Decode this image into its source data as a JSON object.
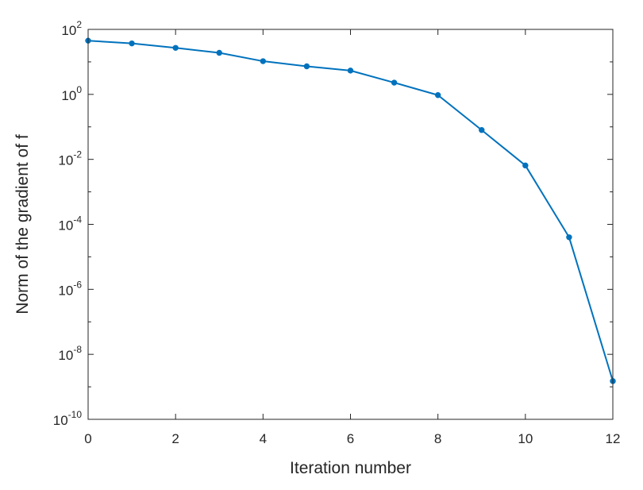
{
  "chart_data": {
    "type": "line",
    "title": "",
    "xlabel": "Iteration number",
    "ylabel": "Norm of the gradient of f",
    "yscale": "log",
    "xlim": [
      0,
      12
    ],
    "ylim": [
      1e-10,
      100
    ],
    "grid": false,
    "legend": "none",
    "x_ticks": [
      0,
      2,
      4,
      6,
      8,
      10,
      12
    ],
    "y_ticks": [
      {
        "base": "10",
        "exp": "-10"
      },
      {
        "base": "10",
        "exp": "-8"
      },
      {
        "base": "10",
        "exp": "-6"
      },
      {
        "base": "10",
        "exp": "-4"
      },
      {
        "base": "10",
        "exp": "-2"
      },
      {
        "base": "10",
        "exp": "0"
      },
      {
        "base": "10",
        "exp": "2"
      }
    ],
    "series": [
      {
        "color": "#0072BD",
        "marker": "dot",
        "x": [
          0,
          1,
          2,
          3,
          4,
          5,
          6,
          7,
          8,
          9,
          10,
          11,
          12
        ],
        "y": [
          45,
          37,
          27,
          19,
          10.5,
          7.3,
          5.4,
          2.3,
          0.95,
          0.08,
          0.0065,
          4e-05,
          1.5e-09
        ]
      }
    ]
  }
}
